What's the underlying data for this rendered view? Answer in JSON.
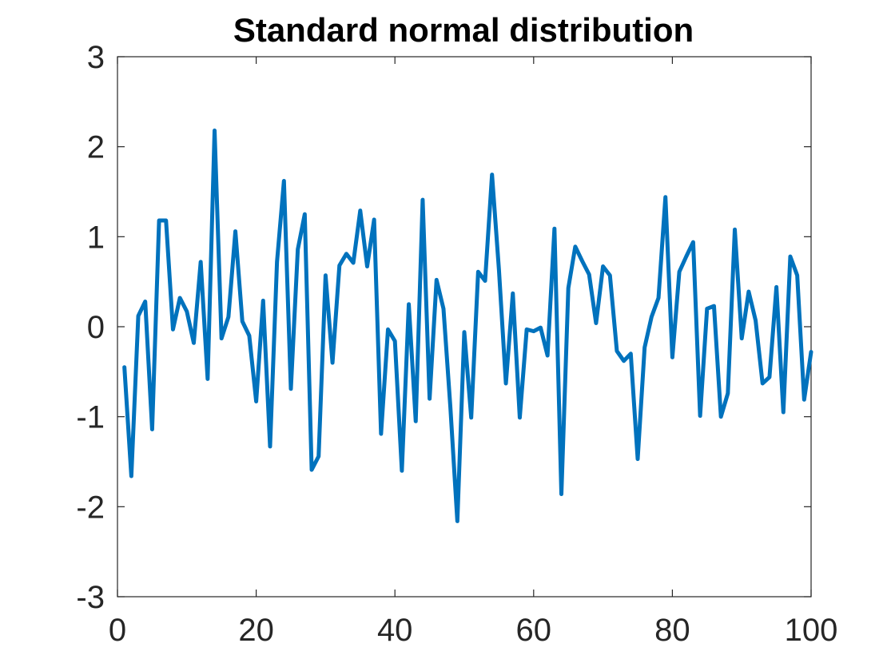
{
  "chart_data": {
    "type": "line",
    "title": "Standard normal distribution",
    "xlabel": "",
    "ylabel": "",
    "xlim": [
      0,
      100
    ],
    "ylim": [
      -3,
      3
    ],
    "xticks": [
      0,
      20,
      40,
      60,
      80,
      100
    ],
    "yticks": [
      -3,
      -2,
      -1,
      0,
      1,
      2,
      3
    ],
    "xtick_labels": [
      "0",
      "20",
      "40",
      "60",
      "80",
      "100"
    ],
    "ytick_labels": [
      "-3",
      "-2",
      "-1",
      "0",
      "1",
      "2",
      "3"
    ],
    "grid": false,
    "line_color": "#0072BD",
    "series": [
      {
        "x": [
          1,
          2,
          3,
          4,
          5,
          6,
          7,
          8,
          9,
          10,
          11,
          12,
          13,
          14,
          15,
          16,
          17,
          18,
          19,
          20,
          21,
          22,
          23,
          24,
          25,
          26,
          27,
          28,
          29,
          30,
          31,
          32,
          33,
          34,
          35,
          36,
          37,
          38,
          39,
          40,
          41,
          42,
          43,
          44,
          45,
          46,
          47,
          48,
          49,
          50,
          51,
          52,
          53,
          54,
          55,
          56,
          57,
          58,
          59,
          60,
          61,
          62,
          63,
          64,
          65,
          66,
          67,
          68,
          69,
          70,
          71,
          72,
          73,
          74,
          75,
          76,
          77,
          78,
          79,
          80,
          81,
          82,
          83,
          84,
          85,
          86,
          87,
          88,
          89,
          90,
          91,
          92,
          93,
          94,
          95,
          96,
          97,
          98,
          99,
          100
        ],
        "values": [
          -0.45,
          -1.66,
          0.12,
          0.28,
          -1.14,
          1.18,
          1.18,
          -0.03,
          0.32,
          0.17,
          -0.18,
          0.72,
          -0.58,
          2.18,
          -0.13,
          0.11,
          1.06,
          0.06,
          -0.1,
          -0.83,
          0.29,
          -1.33,
          0.72,
          1.62,
          -0.69,
          0.86,
          1.25,
          -1.59,
          -1.44,
          0.57,
          -0.4,
          0.68,
          0.81,
          0.71,
          1.29,
          0.67,
          1.19,
          -1.19,
          -0.03,
          -0.16,
          -1.6,
          0.25,
          -1.05,
          1.41,
          -0.8,
          0.52,
          0.2,
          -0.9,
          -2.16,
          -0.06,
          -1.01,
          0.61,
          0.51,
          1.69,
          0.63,
          -0.63,
          0.37,
          -1.01,
          -0.03,
          -0.05,
          -0.01,
          -0.32,
          1.09,
          -1.86,
          0.43,
          0.89,
          0.73,
          0.58,
          0.04,
          0.67,
          0.57,
          -0.27,
          -0.38,
          -0.3,
          -1.47,
          -0.23,
          0.11,
          0.32,
          1.44,
          -0.34,
          0.61,
          0.78,
          0.94,
          -0.99,
          0.2,
          0.23,
          -1.0,
          -0.74,
          1.08,
          -0.13,
          0.39,
          0.07,
          -0.63,
          -0.56,
          0.44,
          -0.95,
          0.78,
          0.57,
          -0.81,
          -0.28
        ]
      }
    ]
  }
}
